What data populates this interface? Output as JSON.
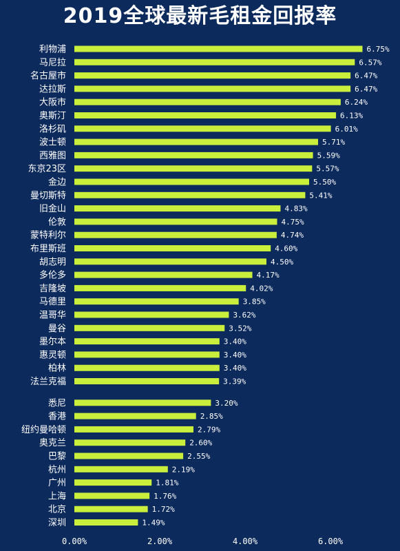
{
  "chart_data": {
    "type": "bar",
    "orientation": "horizontal",
    "title": "2019全球最新毛租金回报率",
    "bar_color": "#c9ef3c",
    "background": "#0d2a5c",
    "xlim": [
      0,
      0.075
    ],
    "x_ticks": [
      {
        "value": 0,
        "label": "0.00%"
      },
      {
        "value": 0.02,
        "label": "2.00%"
      },
      {
        "value": 0.04,
        "label": "4.00%"
      },
      {
        "value": 0.06,
        "label": "6.00%"
      }
    ],
    "grid": false,
    "categories": [
      "利物浦",
      "马尼拉",
      "名古屋市",
      "达拉斯",
      "大阪市",
      "奥斯汀",
      "洛杉矶",
      "波士顿",
      "西雅图",
      "东京23区",
      "金边",
      "曼切斯特",
      "旧金山",
      "伦敦",
      "蒙特利尔",
      "布里斯班",
      "胡志明",
      "多伦多",
      "吉隆坡",
      "马德里",
      "温哥华",
      "曼谷",
      "墨尔本",
      "惠灵顿",
      "柏林",
      "法兰克福",
      "悉尼",
      "香港",
      "纽约曼哈顿",
      "奥克兰",
      "巴黎",
      "杭州",
      "广州",
      "上海",
      "北京",
      "深圳"
    ],
    "values": [
      0.0675,
      0.0657,
      0.0647,
      0.0647,
      0.0624,
      0.0613,
      0.0601,
      0.0571,
      0.0559,
      0.0557,
      0.055,
      0.0541,
      0.0483,
      0.0475,
      0.0474,
      0.046,
      0.045,
      0.0417,
      0.0402,
      0.0385,
      0.0362,
      0.0352,
      0.034,
      0.034,
      0.034,
      0.0339,
      0.032,
      0.0285,
      0.0279,
      0.026,
      0.0255,
      0.0219,
      0.0181,
      0.0176,
      0.0172,
      0.0149
    ],
    "value_labels": [
      "6.75%",
      "6.57%",
      "6.47%",
      "6.47%",
      "6.24%",
      "6.13%",
      "6.01%",
      "5.71%",
      "5.59%",
      "5.57%",
      "5.50%",
      "5.41%",
      "4.83%",
      "4.75%",
      "4.74%",
      "4.60%",
      "4.50%",
      "4.17%",
      "4.02%",
      "3.85%",
      "3.62%",
      "3.52%",
      "3.40%",
      "3.40%",
      "3.40%",
      "3.39%",
      "3.20%",
      "2.85%",
      "2.79%",
      "2.60%",
      "2.55%",
      "2.19%",
      "1.81%",
      "1.76%",
      "1.72%",
      "1.49%"
    ]
  }
}
